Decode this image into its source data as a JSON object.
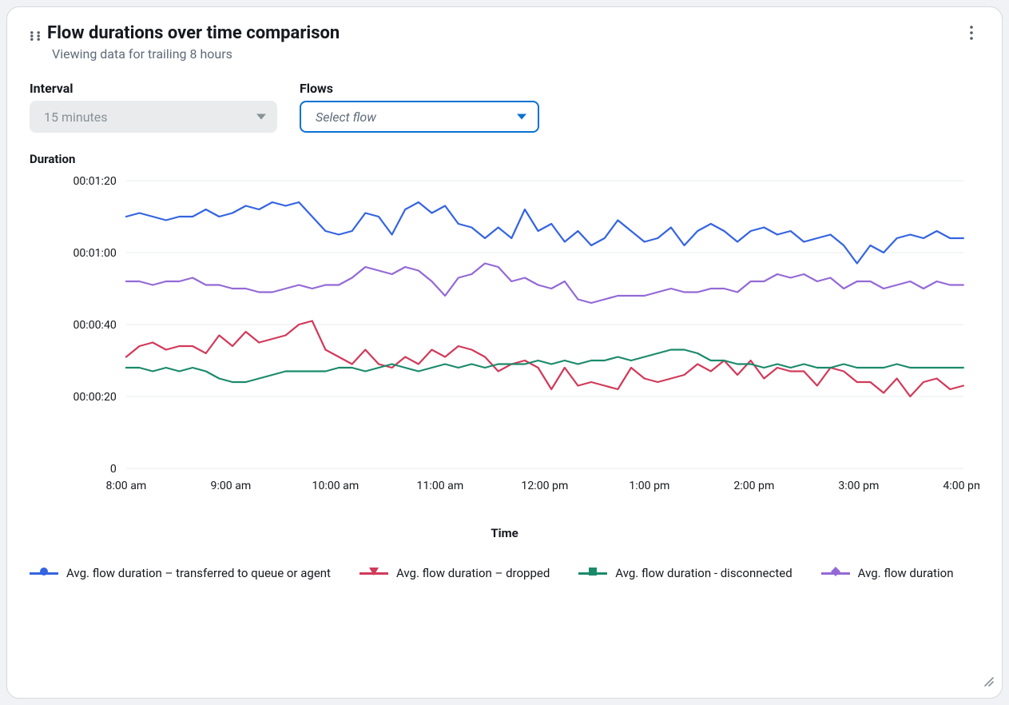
{
  "card": {
    "title": "Flow durations over time comparison",
    "subtitle": "Viewing data for trailing 8 hours"
  },
  "controls": {
    "interval": {
      "label": "Interval",
      "value": "15 minutes",
      "enabled": false
    },
    "flows": {
      "label": "Flows",
      "placeholder": "Select flow",
      "enabled": true
    }
  },
  "chart": {
    "type": "line",
    "y_axis_title": "Duration",
    "x_axis_title": "Time",
    "background_color": "#ffffff",
    "grid_color": "#eaeded",
    "line_width": 2.2,
    "ylim_seconds": [
      0,
      80
    ],
    "y_ticks": [
      {
        "seconds": 0,
        "label": "0"
      },
      {
        "seconds": 20,
        "label": "00:00:20"
      },
      {
        "seconds": 40,
        "label": "00:00:40"
      },
      {
        "seconds": 60,
        "label": "00:01:00"
      },
      {
        "seconds": 80,
        "label": "00:01:20"
      }
    ],
    "x_tick_labels": [
      "8:00 am",
      "9:00 am",
      "10:00 am",
      "11:00 am",
      "12:00 pm",
      "1:00 pm",
      "2:00 pm",
      "3:00 pm",
      "4:00 pm"
    ],
    "series": [
      {
        "id": "transferred",
        "label": "Avg. flow duration – transferred to queue or agent",
        "color": "#3464e0",
        "marker": "circle",
        "values": [
          70,
          71,
          70,
          69,
          70,
          70,
          72,
          70,
          71,
          73,
          72,
          74,
          73,
          74,
          70,
          66,
          65,
          66,
          71,
          70,
          65,
          72,
          74,
          71,
          73,
          68,
          67,
          64,
          67,
          64,
          72,
          66,
          68,
          63,
          66,
          62,
          64,
          69,
          66,
          63,
          64,
          67,
          62,
          66,
          68,
          66,
          63,
          66,
          67,
          65,
          66,
          63,
          64,
          65,
          62,
          57,
          62,
          60,
          64,
          65,
          64,
          66,
          64,
          64
        ]
      },
      {
        "id": "dropped",
        "label": "Avg. flow duration – dropped",
        "color": "#d13a5a",
        "marker": "triangle-down",
        "values": [
          31,
          34,
          35,
          33,
          34,
          34,
          32,
          37,
          34,
          38,
          35,
          36,
          37,
          40,
          41,
          33,
          31,
          29,
          33,
          29,
          28,
          31,
          29,
          33,
          31,
          34,
          33,
          31,
          27,
          29,
          30,
          28,
          22,
          28,
          23,
          24,
          23,
          22,
          28,
          25,
          24,
          25,
          26,
          29,
          27,
          30,
          26,
          30,
          25,
          28,
          27,
          27,
          23,
          28,
          27,
          24,
          24,
          21,
          25,
          20,
          24,
          25,
          22,
          23
        ]
      },
      {
        "id": "disconnected",
        "label": "Avg. flow duration - disconnected",
        "color": "#1b8a6b",
        "marker": "square",
        "values": [
          28,
          28,
          27,
          28,
          27,
          28,
          27,
          25,
          24,
          24,
          25,
          26,
          27,
          27,
          27,
          27,
          28,
          28,
          27,
          28,
          29,
          28,
          27,
          28,
          29,
          28,
          29,
          28,
          29,
          29,
          29,
          30,
          29,
          30,
          29,
          30,
          30,
          31,
          30,
          31,
          32,
          33,
          33,
          32,
          30,
          30,
          29,
          29,
          28,
          29,
          28,
          29,
          28,
          28,
          29,
          28,
          28,
          28,
          29,
          28,
          28,
          28,
          28,
          28
        ]
      },
      {
        "id": "avg",
        "label": "Avg. flow duration",
        "color": "#9469d6",
        "marker": "diamond",
        "values": [
          52,
          52,
          51,
          52,
          52,
          53,
          51,
          51,
          50,
          50,
          49,
          49,
          50,
          51,
          50,
          51,
          51,
          53,
          56,
          55,
          54,
          56,
          55,
          52,
          48,
          53,
          54,
          57,
          56,
          52,
          53,
          51,
          50,
          52,
          47,
          46,
          47,
          48,
          48,
          48,
          49,
          50,
          49,
          49,
          50,
          50,
          49,
          52,
          52,
          54,
          53,
          54,
          52,
          53,
          50,
          52,
          52,
          50,
          51,
          52,
          50,
          52,
          51,
          51
        ]
      }
    ],
    "legend_order": [
      "transferred",
      "dropped",
      "disconnected",
      "avg"
    ]
  }
}
